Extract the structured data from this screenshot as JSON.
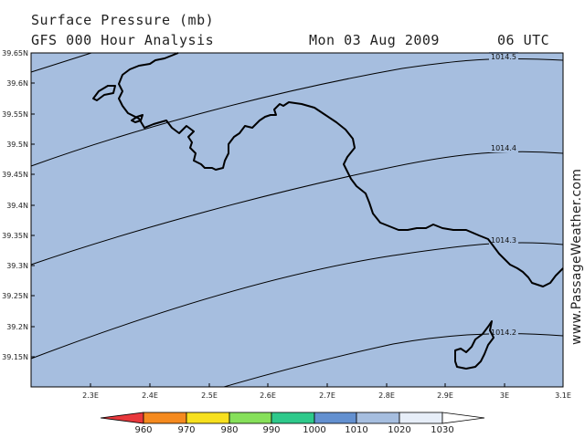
{
  "header": {
    "title": "Surface Pressure (mb)",
    "subtitle": "GFS 000 Hour Analysis",
    "datetime": "Mon 03 Aug 2009",
    "hour": "06 UTC"
  },
  "watermark": "www.PassageWeather.com",
  "map": {
    "background_color": "#a6bedf",
    "lat_ticks": [
      "39.65N",
      "39.6N",
      "39.55N",
      "39.5N",
      "39.45N",
      "39.4N",
      "39.35N",
      "39.3N",
      "39.25N",
      "39.2N",
      "39.15N"
    ],
    "lon_ticks": [
      "2.3E",
      "2.4E",
      "2.5E",
      "2.6E",
      "2.7E",
      "2.8E",
      "2.9E",
      "3E",
      "3.1E"
    ],
    "isobars": [
      {
        "label": "1014.5"
      },
      {
        "label": "1014.4"
      },
      {
        "label": "1014.3"
      },
      {
        "label": "1014.2"
      }
    ]
  },
  "colorbar": {
    "labels": [
      "960",
      "970",
      "980",
      "990",
      "1000",
      "1010",
      "1020",
      "1030"
    ],
    "colors": [
      "#e8383c",
      "#f58a1f",
      "#f7e01e",
      "#86e05a",
      "#2ec98b",
      "#6390d0",
      "#a6bedf",
      "#e7eef8"
    ]
  }
}
